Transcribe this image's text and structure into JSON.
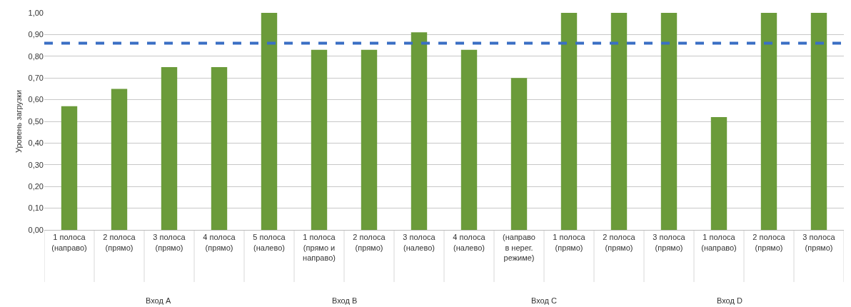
{
  "chart_data": {
    "type": "bar",
    "ylabel": "Уровень загрузки",
    "categories": [
      "1 полоса\n(направо)",
      "2 полоса\n(прямо)",
      "3 полоса\n(прямо)",
      "4 полоса\n(прямо)",
      "5 полоса\n(налево)",
      "1 полоса\n(прямо и\nнаправо)",
      "2 полоса\n(прямо)",
      "3 полоса\n(налево)",
      "4 полоса\n(налево)",
      "(направо\nв нерег.\nрежиме)",
      "1 полоса\n(прямо)",
      "2 полоса\n(прямо)",
      "3 полоса\n(прямо)",
      "1 полоса\n(направо)",
      "2 полоса\n(прямо)",
      "3 полоса\n(прямо)"
    ],
    "values": [
      0.57,
      0.65,
      0.75,
      0.75,
      1.0,
      0.83,
      0.83,
      0.91,
      0.83,
      0.7,
      1.0,
      1.0,
      1.0,
      0.52,
      1.0,
      1.0
    ],
    "color": "#6b9b3a",
    "ylim": [
      0,
      1
    ],
    "yticks": [
      {
        "value": 0,
        "label": "0,00"
      },
      {
        "value": 0.1,
        "label": "0,10"
      },
      {
        "value": 0.2,
        "label": "0,20"
      },
      {
        "value": 0.3,
        "label": "0,30"
      },
      {
        "value": 0.4,
        "label": "0,40"
      },
      {
        "value": 0.5,
        "label": "0,50"
      },
      {
        "value": 0.6,
        "label": "0,60"
      },
      {
        "value": 0.7,
        "label": "0,70"
      },
      {
        "value": 0.8,
        "label": "0,80"
      },
      {
        "value": 0.9,
        "label": "0,90"
      },
      {
        "value": 1,
        "label": "1,00"
      }
    ],
    "grid": "y",
    "ref_lines": [
      {
        "axis": "y",
        "value": 0.86,
        "color": "#3a6fc4",
        "line_style": "dashed"
      }
    ],
    "annotations": [
      "Вход A",
      "Вход B",
      "Вход C",
      "Вход D"
    ]
  }
}
